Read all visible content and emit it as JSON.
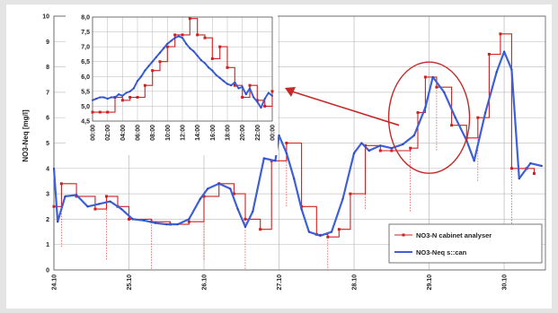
{
  "chart_data": [
    {
      "type": "line",
      "title": "",
      "xlabel": "",
      "ylabel": "NO3-Neq [mg/l]",
      "ylim": [
        0,
        10
      ],
      "y_ticks": [
        "0",
        "1",
        "2",
        "3",
        "4",
        "5",
        "6",
        "7",
        "8",
        "9",
        "10"
      ],
      "x_ticks": [
        "24.10",
        "25.10",
        "26.10",
        "27.10",
        "28.10",
        "29.10",
        "30.10"
      ],
      "grid": true,
      "legend": "bottom-right",
      "series": [
        {
          "name": "NO3-N cabinet analyser",
          "color": "#d02020",
          "style": "step-markers",
          "x": [
            24.0,
            24.1,
            24.3,
            24.55,
            24.7,
            24.85,
            25.0,
            25.3,
            25.55,
            25.8,
            26.0,
            26.2,
            26.4,
            26.55,
            26.75,
            26.9,
            27.1,
            27.3,
            27.5,
            27.65,
            27.8,
            27.95,
            28.15,
            28.35,
            28.5,
            28.75,
            28.85,
            28.95,
            29.1,
            29.3,
            29.5,
            29.65,
            29.8,
            29.95,
            30.1,
            30.3,
            30.4
          ],
          "y": [
            2.5,
            3.4,
            2.9,
            2.4,
            2.9,
            2.5,
            2.0,
            1.9,
            1.8,
            1.9,
            2.9,
            3.4,
            3.0,
            2.0,
            1.6,
            4.3,
            5.0,
            2.5,
            1.4,
            1.3,
            1.6,
            3.0,
            4.9,
            4.7,
            4.7,
            4.8,
            6.2,
            7.6,
            7.2,
            5.7,
            5.2,
            6.0,
            8.5,
            9.3,
            4.0,
            4.0,
            3.8
          ]
        },
        {
          "name": "NO3-Neq s::can",
          "color": "#3d5fd8",
          "style": "line",
          "x": [
            24.0,
            24.05,
            24.15,
            24.3,
            24.45,
            24.6,
            24.75,
            24.9,
            25.05,
            25.2,
            25.35,
            25.5,
            25.65,
            25.8,
            25.95,
            26.05,
            26.2,
            26.35,
            26.45,
            26.55,
            26.65,
            26.8,
            26.95,
            27.0,
            27.1,
            27.2,
            27.3,
            27.4,
            27.55,
            27.7,
            27.85,
            28.0,
            28.1,
            28.2,
            28.35,
            28.5,
            28.65,
            28.8,
            28.95,
            29.05,
            29.2,
            29.35,
            29.5,
            29.6,
            29.75,
            29.9,
            30.0,
            30.1,
            30.2,
            30.35,
            30.5
          ],
          "y": [
            4.0,
            1.9,
            2.9,
            2.95,
            2.5,
            2.6,
            2.7,
            2.4,
            2.0,
            1.95,
            1.85,
            1.8,
            1.8,
            2.0,
            2.8,
            3.2,
            3.4,
            3.2,
            2.4,
            1.7,
            2.3,
            4.4,
            4.3,
            5.3,
            4.6,
            3.6,
            2.4,
            1.5,
            1.35,
            1.5,
            2.8,
            4.6,
            5.0,
            4.7,
            4.9,
            4.8,
            4.95,
            5.3,
            6.4,
            7.6,
            7.0,
            6.0,
            5.1,
            4.3,
            6.2,
            7.8,
            8.6,
            7.9,
            3.6,
            4.2,
            4.1
          ]
        }
      ]
    },
    {
      "type": "line",
      "title": "",
      "xlabel": "",
      "ylabel": "",
      "ylim": [
        4.5,
        8.0
      ],
      "y_ticks": [
        "4,5",
        "5,0",
        "5,5",
        "6,0",
        "6,5",
        "7,0",
        "7,5",
        "8,0"
      ],
      "x_ticks": [
        "00:00",
        "02:00",
        "04:00",
        "06:00",
        "08:00",
        "10:00",
        "12:00",
        "14:00",
        "16:00",
        "18:00",
        "20:00",
        "22:00",
        "00:00"
      ],
      "grid": true,
      "series": [
        {
          "color": "#d02020",
          "style": "step-markers",
          "x": [
            0,
            1,
            2,
            3,
            4,
            5,
            6,
            7,
            8,
            9,
            10,
            11,
            12,
            13,
            14,
            15,
            16,
            17,
            18,
            19,
            20,
            21,
            22,
            23,
            24
          ],
          "y": [
            4.8,
            4.8,
            4.8,
            5.3,
            5.2,
            5.3,
            5.3,
            5.7,
            6.2,
            6.5,
            7.0,
            7.4,
            7.4,
            7.95,
            7.4,
            7.3,
            6.6,
            7.0,
            6.3,
            5.7,
            5.3,
            5.7,
            5.2,
            5.0,
            5.5
          ]
        },
        {
          "color": "#3d5fd8",
          "style": "line",
          "x": [
            0,
            0.5,
            1,
            1.5,
            2,
            2.5,
            3,
            3.5,
            4,
            4.5,
            5,
            5.5,
            6,
            6.5,
            7,
            7.5,
            8,
            8.5,
            9,
            9.5,
            10,
            10.5,
            11,
            11.5,
            12,
            12.5,
            13,
            13.5,
            14,
            14.5,
            15,
            15.5,
            16,
            16.5,
            17,
            17.5,
            18,
            18.5,
            19,
            19.5,
            20,
            20.5,
            21,
            21.5,
            22,
            22.5,
            23,
            23.5,
            24
          ],
          "y": [
            5.2,
            5.25,
            5.3,
            5.3,
            5.25,
            5.3,
            5.3,
            5.4,
            5.35,
            5.45,
            5.5,
            5.6,
            5.85,
            6.0,
            6.2,
            6.35,
            6.5,
            6.65,
            6.8,
            6.95,
            7.1,
            7.2,
            7.3,
            7.35,
            7.3,
            7.1,
            6.95,
            6.85,
            6.7,
            6.55,
            6.45,
            6.3,
            6.2,
            6.05,
            5.95,
            5.85,
            5.75,
            5.7,
            5.8,
            5.6,
            5.65,
            5.4,
            5.6,
            5.3,
            5.15,
            4.95,
            5.25,
            5.45,
            5.35
          ]
        }
      ]
    }
  ]
}
